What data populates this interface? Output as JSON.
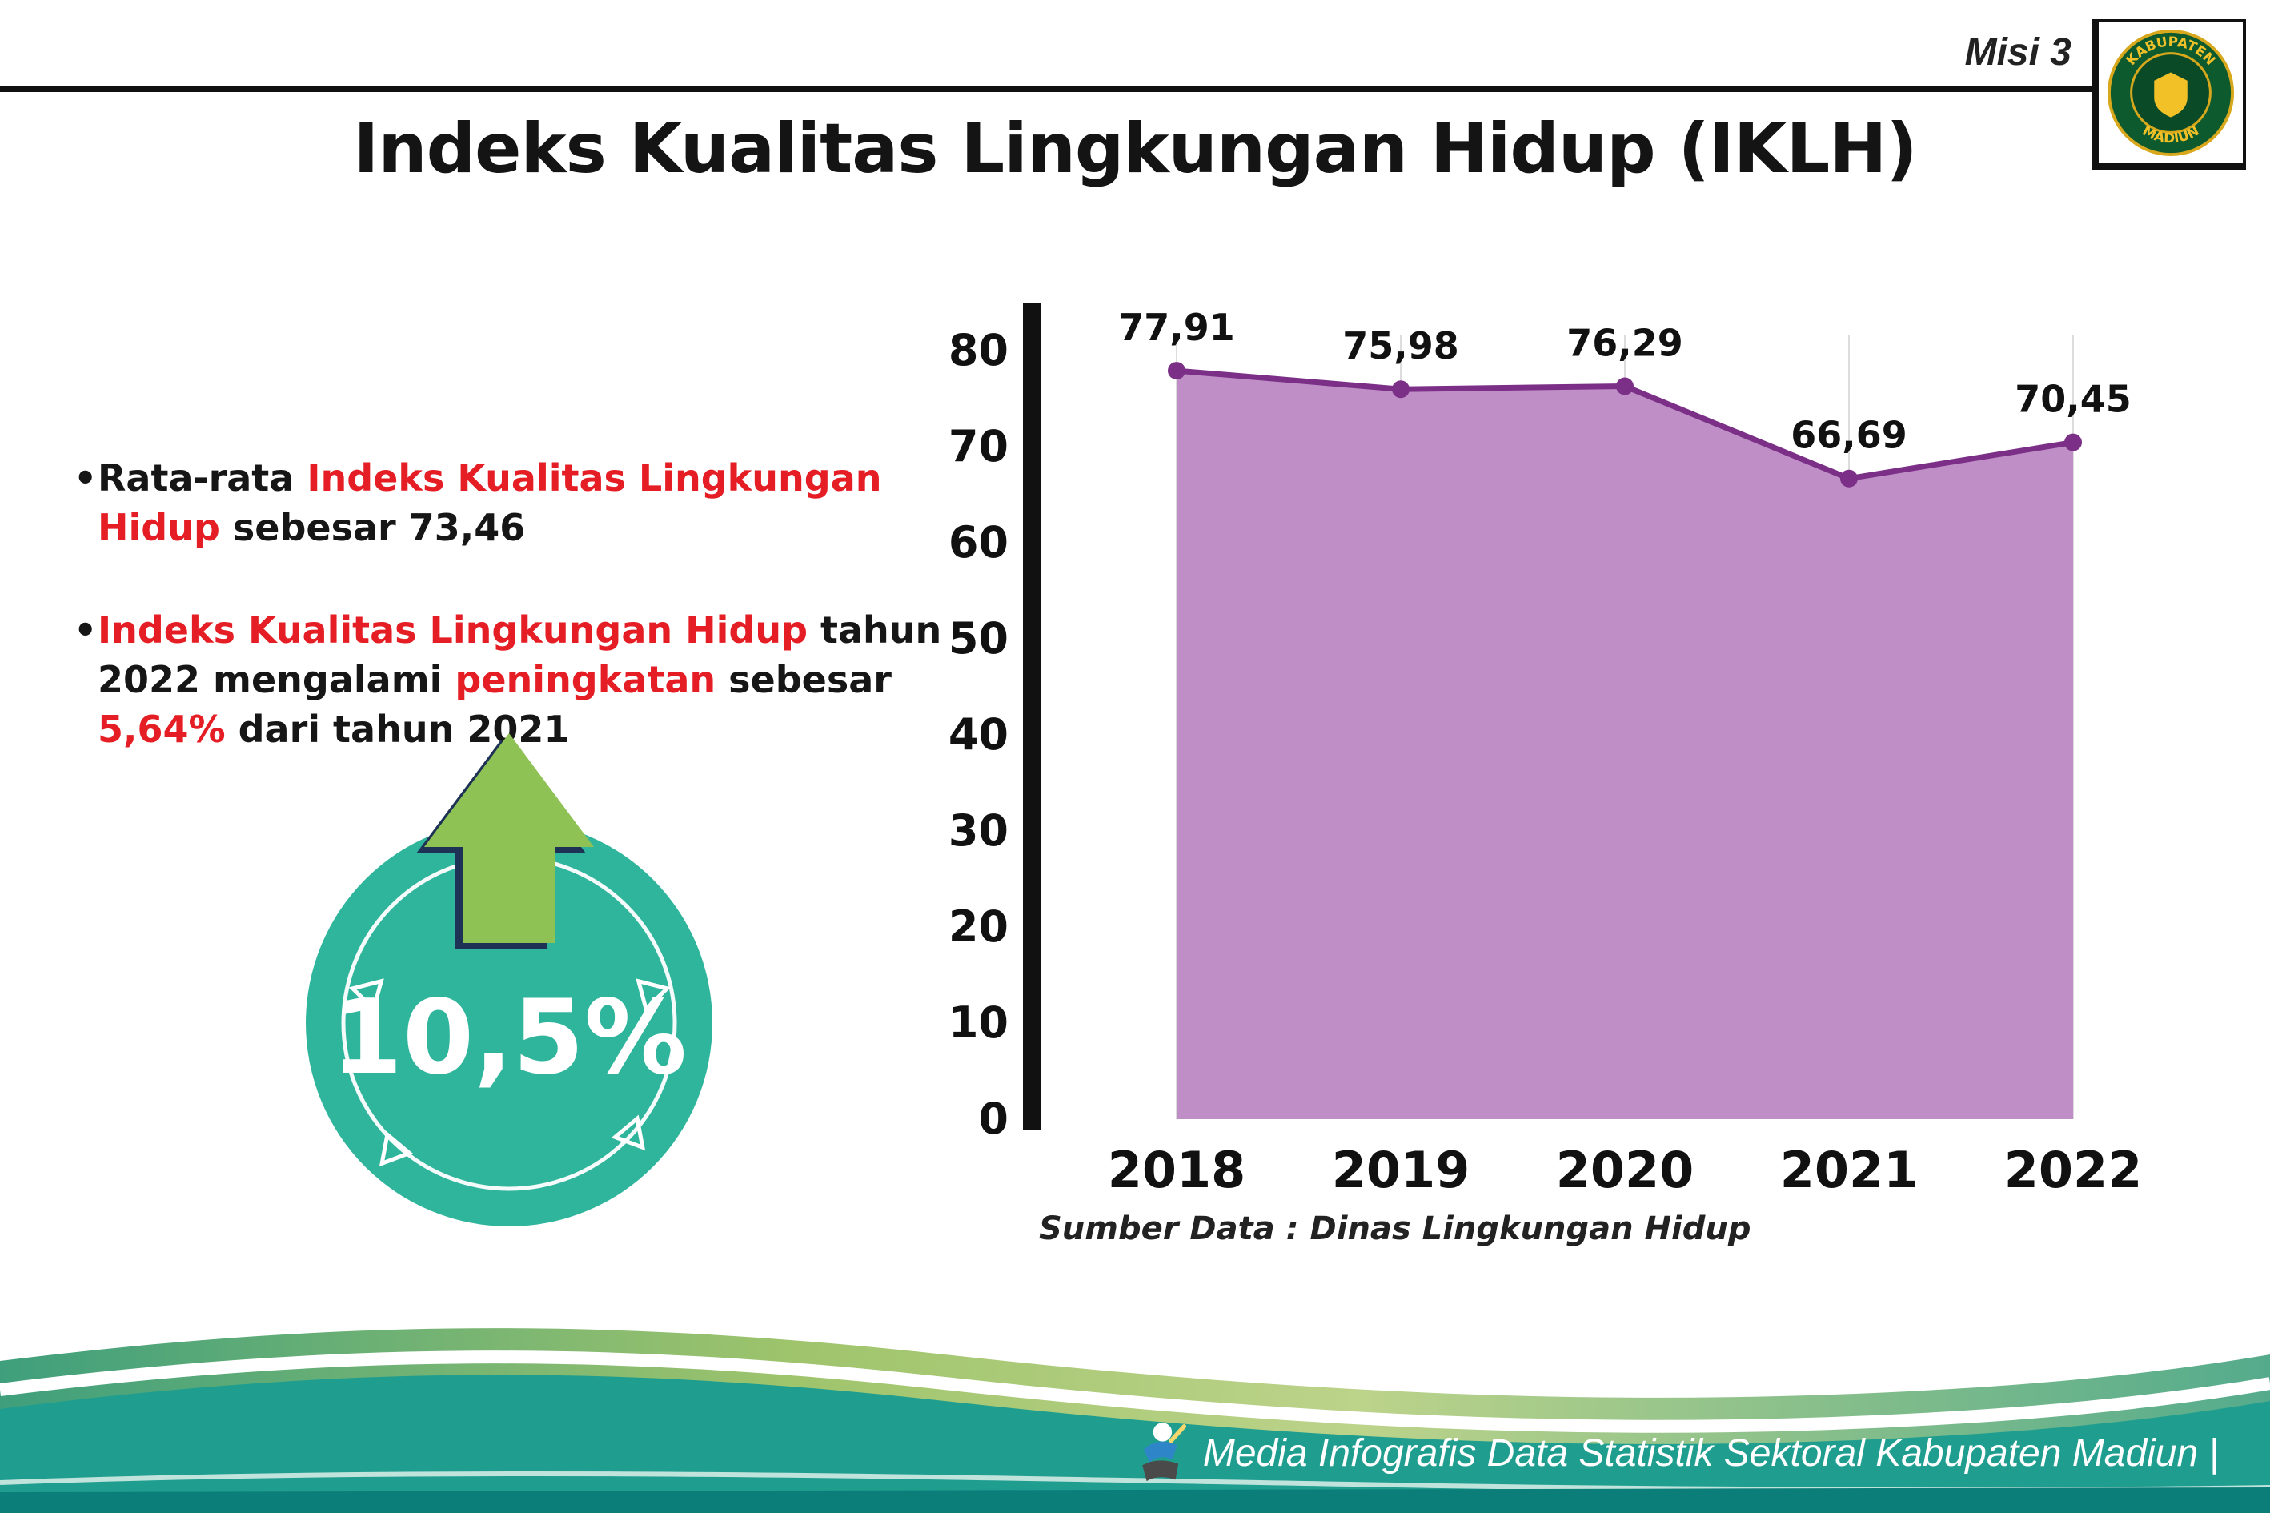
{
  "header": {
    "misi_label": "Misi 3",
    "title": "Indeks Kualitas Lingkungan Hidup (IKLH)",
    "logo": {
      "top_text": "KABUPATEN",
      "bottom_text": "MADIUN"
    }
  },
  "bullets": [
    {
      "segments": [
        {
          "text": "Rata-rata ",
          "color": "black"
        },
        {
          "text": "Indeks Kualitas Lingkungan Hidup",
          "color": "red"
        },
        {
          "text": " sebesar 73,46",
          "color": "black"
        }
      ]
    },
    {
      "segments": [
        {
          "text": "Indeks Kualitas Lingkungan Hidup",
          "color": "red"
        },
        {
          "text": " tahun 2022 mengalami ",
          "color": "black"
        },
        {
          "text": "peningkatan",
          "color": "red"
        },
        {
          "text": " sebesar ",
          "color": "black"
        },
        {
          "text": "5,64%",
          "color": "red"
        },
        {
          "text": " dari tahun 2021",
          "color": "black"
        }
      ]
    }
  ],
  "badge": {
    "value": "10,5%",
    "circle_color": "#2fb59c",
    "arrow_color": "#8fc255",
    "arrow_outline_color": "#1e3256"
  },
  "chart_data": {
    "type": "area",
    "categories": [
      "2018",
      "2019",
      "2020",
      "2021",
      "2022"
    ],
    "values": [
      77.91,
      75.98,
      76.29,
      66.69,
      70.45
    ],
    "value_labels": [
      "77,91",
      "75,98",
      "76,29",
      "66,69",
      "70,45"
    ],
    "title": "",
    "xlabel": "",
    "ylabel": "",
    "ylim": [
      0,
      80
    ],
    "ytick_step": 10,
    "grid": "vertical-light",
    "legend": "none",
    "line_color": "#7b2f87",
    "fill_color": "#bf8ec7"
  },
  "source_note": "Sumber Data : Dinas Lingkungan Hidup",
  "footer": {
    "text": "Media Infografis Data Statistik Sektoral Kabupaten Madiun |"
  }
}
